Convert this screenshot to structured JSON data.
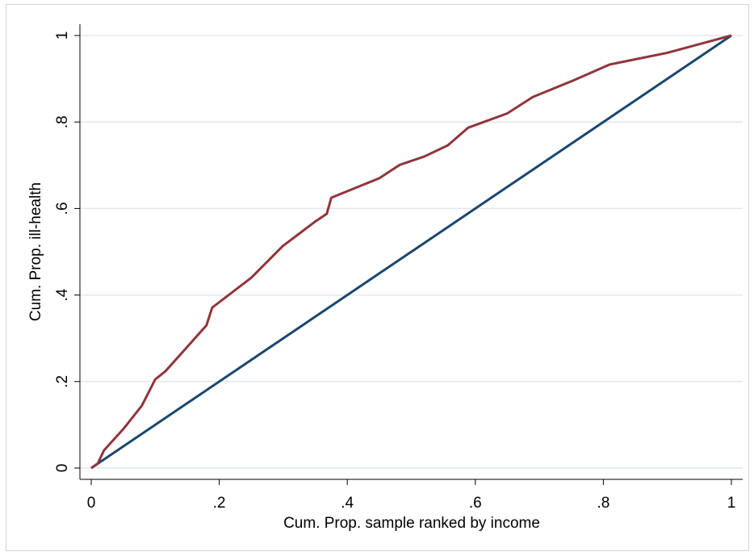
{
  "chart_data": {
    "type": "line",
    "x_label": "Cum. Prop. sample ranked by income",
    "y_label": "Cum. Prop. ill-health",
    "xlim": [
      0,
      1
    ],
    "ylim": [
      0,
      1
    ],
    "xticks": [
      0,
      {
        "value": 0.2,
        "label": ".2"
      },
      {
        "value": 0.4,
        "label": ".4"
      },
      {
        "value": 0.6,
        "label": ".6"
      },
      {
        "value": 0.8,
        "label": ".8"
      },
      1
    ],
    "yticks": [
      0,
      {
        "value": 0.2,
        "label": ".2"
      },
      {
        "value": 0.4,
        "label": ".4"
      },
      {
        "value": 0.6,
        "label": ".6"
      },
      {
        "value": 0.8,
        "label": ".8"
      },
      1
    ],
    "grid": true,
    "series": [
      {
        "color": "#90353b",
        "x": [
          0,
          0.01,
          0.02,
          0.05,
          0.079,
          0.1,
          0.116,
          0.15,
          0.18,
          0.189,
          0.25,
          0.299,
          0.35,
          0.368,
          0.375,
          0.45,
          0.482,
          0.52,
          0.557,
          0.589,
          0.65,
          0.69,
          0.753,
          0.81,
          0.9,
          0.95,
          1
        ],
        "values": [
          0,
          0.01,
          0.041,
          0.09,
          0.144,
          0.205,
          0.224,
          0.28,
          0.33,
          0.371,
          0.44,
          0.513,
          0.57,
          0.588,
          0.625,
          0.67,
          0.701,
          0.72,
          0.746,
          0.787,
          0.82,
          0.858,
          0.896,
          0.933,
          0.96,
          0.98,
          1
        ]
      },
      {
        "color": "#1a476f",
        "x": [
          0,
          1
        ],
        "values": [
          0,
          1
        ]
      }
    ]
  }
}
